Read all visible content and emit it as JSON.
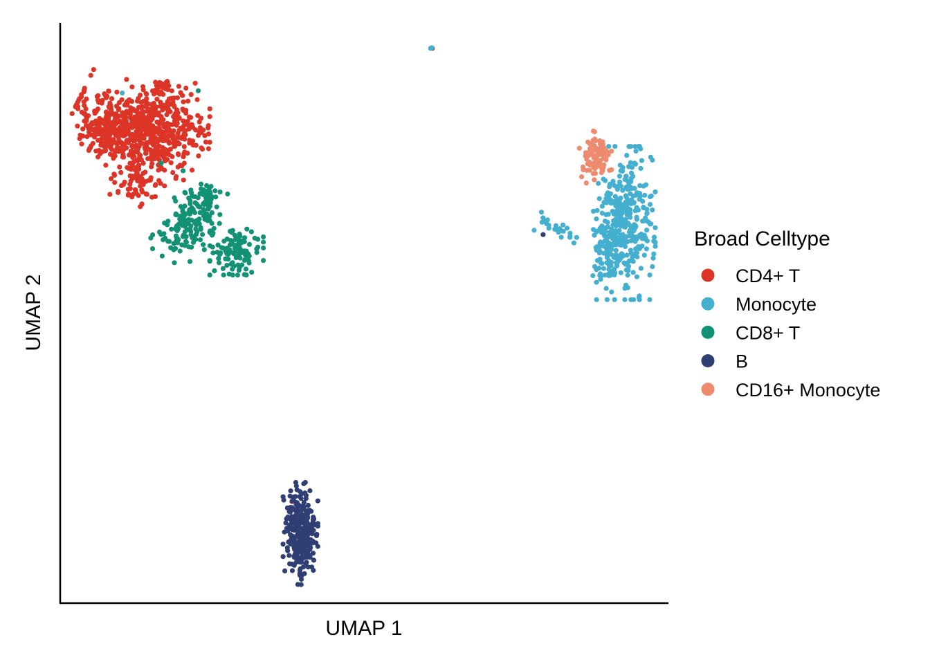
{
  "chart_data": {
    "type": "scatter",
    "title": "",
    "xlabel": "UMAP 1",
    "ylabel": "UMAP 2",
    "xlim": [
      0,
      100
    ],
    "ylim": [
      0,
      100
    ],
    "grid": false,
    "ticks": false,
    "legend": {
      "title": "Broad Celltype",
      "placement": "right"
    },
    "series": [
      {
        "name": "CD4+ T",
        "color": "#DC3528",
        "clusters": [
          {
            "cx": 13,
            "cy": 82,
            "sx": 5,
            "sy": 3,
            "n": 420,
            "rot": -25
          },
          {
            "cx": 8,
            "cy": 81,
            "sx": 3,
            "sy": 2,
            "n": 160,
            "rot": -40
          },
          {
            "cx": 18,
            "cy": 83,
            "sx": 3,
            "sy": 3,
            "n": 160,
            "rot": 0
          },
          {
            "cx": 13,
            "cy": 74,
            "sx": 2.5,
            "sy": 2.5,
            "n": 100,
            "rot": -30
          },
          {
            "cx": 17,
            "cy": 89,
            "sx": 0.9,
            "sy": 0.6,
            "n": 25,
            "rot": 0
          }
        ],
        "extra_points": [
          [
            38.1,
            17.5
          ],
          [
            39.6,
            4.6
          ],
          [
            61.2,
            95.6
          ],
          [
            20.4,
            75.8
          ],
          [
            17.2,
            80.5
          ]
        ]
      },
      {
        "name": "Monocyte",
        "color": "#44AFCE",
        "clusters": [
          {
            "cx": 93,
            "cy": 65.5,
            "sx": 2.2,
            "sy": 6,
            "n": 330,
            "rot": 0
          },
          {
            "cx": 90,
            "cy": 62,
            "sx": 1.2,
            "sy": 3.5,
            "n": 80,
            "rot": 0
          },
          {
            "cx": 82,
            "cy": 64.5,
            "sx": 2.2,
            "sy": 0.8,
            "n": 25,
            "rot": -20
          }
        ],
        "extra_points": [
          [
            61.1,
            95.7
          ],
          [
            60.9,
            95.6
          ],
          [
            10.2,
            87.9
          ]
        ]
      },
      {
        "name": "CD8+ T",
        "color": "#129174",
        "clusters": [
          {
            "cx": 21,
            "cy": 65,
            "sx": 2.2,
            "sy": 3,
            "n": 140,
            "rot": -30
          },
          {
            "cx": 29,
            "cy": 60.5,
            "sx": 2,
            "sy": 1.8,
            "n": 110,
            "rot": 0
          },
          {
            "cx": 24,
            "cy": 70,
            "sx": 1.6,
            "sy": 1.2,
            "n": 40,
            "rot": 0
          }
        ],
        "extra_points": [
          [
            22.7,
            88.3
          ],
          [
            16.6,
            75.8
          ],
          [
            20.2,
            74.5
          ]
        ]
      },
      {
        "name": "B",
        "color": "#303F73",
        "clusters": [
          {
            "cx": 39.5,
            "cy": 12,
            "sx": 1.3,
            "sy": 4,
            "n": 300,
            "rot": 0
          }
        ],
        "extra_points": [
          [
            79.4,
            63.5
          ]
        ]
      },
      {
        "name": "CD16+ Monocyte",
        "color": "#EE8A6E",
        "clusters": [
          {
            "cx": 88,
            "cy": 77,
            "sx": 1.2,
            "sy": 2,
            "n": 90,
            "rot": 0
          }
        ],
        "extra_points": [
          [
            86.5,
            72.4
          ]
        ]
      }
    ]
  }
}
